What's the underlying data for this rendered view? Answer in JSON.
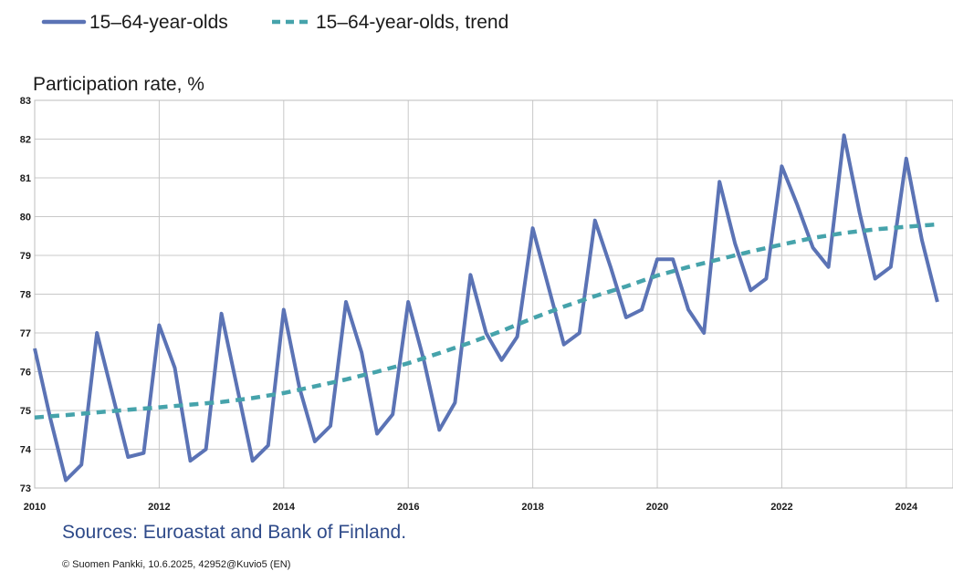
{
  "chart_data": {
    "type": "line",
    "ylabel": "Participation rate, %",
    "ylim": [
      73,
      83
    ],
    "yticks": [
      "73",
      "74",
      "75",
      "76",
      "77",
      "78",
      "79",
      "80",
      "81",
      "82",
      "83"
    ],
    "xlim": [
      2010,
      2024.75
    ],
    "xticks": [
      "2010",
      "2012",
      "2014",
      "2016",
      "2018",
      "2020",
      "2022",
      "2024"
    ],
    "grid": true,
    "legend_position": "top-left",
    "series": [
      {
        "name": "15–64-year-olds",
        "color": "#5b73b5",
        "style": "solid",
        "x": [
          2010,
          2010.25,
          2010.5,
          2010.75,
          2011,
          2011.25,
          2011.5,
          2011.75,
          2012,
          2012.25,
          2012.5,
          2012.75,
          2013,
          2013.25,
          2013.5,
          2013.75,
          2014,
          2014.25,
          2014.5,
          2014.75,
          2015,
          2015.25,
          2015.5,
          2015.75,
          2016,
          2016.25,
          2016.5,
          2016.75,
          2017,
          2017.25,
          2017.5,
          2017.75,
          2018,
          2018.25,
          2018.5,
          2018.75,
          2019,
          2019.25,
          2019.5,
          2019.75,
          2020,
          2020.25,
          2020.5,
          2020.75,
          2021,
          2021.25,
          2021.5,
          2021.75,
          2022,
          2022.25,
          2022.5,
          2022.75,
          2023,
          2023.25,
          2023.5,
          2023.75,
          2024,
          2024.25,
          2024.5
        ],
        "y": [
          76.6,
          74.8,
          73.2,
          73.6,
          77.0,
          75.4,
          73.8,
          73.9,
          77.2,
          76.1,
          73.7,
          74.0,
          77.5,
          75.6,
          73.7,
          74.1,
          77.6,
          75.6,
          74.2,
          74.6,
          77.8,
          76.5,
          74.4,
          74.9,
          77.8,
          76.3,
          74.5,
          75.2,
          78.5,
          77.0,
          76.3,
          76.9,
          79.7,
          78.2,
          76.7,
          77.0,
          79.9,
          78.7,
          77.4,
          77.6,
          78.9,
          78.9,
          77.6,
          77.0,
          80.9,
          79.3,
          78.1,
          78.4,
          81.3,
          80.3,
          79.2,
          78.7,
          82.1,
          80.1,
          78.4,
          78.7,
          81.5,
          79.4,
          77.8
        ]
      },
      {
        "name": "15–64-year-olds, trend",
        "color": "#46a3ab",
        "style": "dashed",
        "x": [
          2010,
          2010.5,
          2011,
          2011.5,
          2012,
          2012.5,
          2013,
          2013.5,
          2014,
          2014.5,
          2015,
          2015.5,
          2016,
          2016.5,
          2017,
          2017.5,
          2018,
          2018.5,
          2019,
          2019.5,
          2020,
          2020.5,
          2021,
          2021.5,
          2022,
          2022.5,
          2023,
          2023.5,
          2024,
          2024.5
        ],
        "y": [
          74.82,
          74.88,
          74.95,
          75.02,
          75.08,
          75.15,
          75.22,
          75.32,
          75.45,
          75.62,
          75.8,
          76.0,
          76.22,
          76.48,
          76.75,
          77.05,
          77.38,
          77.68,
          77.95,
          78.2,
          78.48,
          78.7,
          78.9,
          79.1,
          79.28,
          79.45,
          79.58,
          79.67,
          79.74,
          79.8
        ]
      }
    ],
    "source": "Sources: Euroastat and Bank of Finland.",
    "footer": "© Suomen Pankki, 10.6.2025,  42952@Kuvio5  (EN)"
  }
}
